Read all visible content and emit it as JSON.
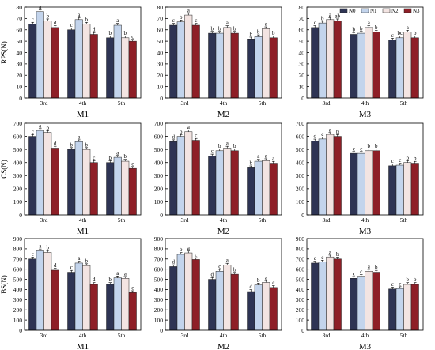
{
  "legend": {
    "items": [
      {
        "name": "N0",
        "color": "#2e3454"
      },
      {
        "name": "N1",
        "color": "#c3d4ec"
      },
      {
        "name": "N2",
        "color": "#f3e4e2"
      },
      {
        "name": "N3",
        "color": "#8e1f27"
      }
    ],
    "placement": "top-right"
  },
  "chart_data": [
    {
      "type": "bar",
      "ylabel": "RPS(N)",
      "xlabel": "M1",
      "ylim": [
        0,
        80
      ],
      "yticks": [
        0,
        10,
        20,
        30,
        40,
        50,
        60,
        70,
        80
      ],
      "categories": [
        "3rd",
        "4th",
        "5th"
      ],
      "series": [
        {
          "name": "N0",
          "values": [
            65,
            60,
            53
          ],
          "letters": [
            "c",
            "c",
            "b"
          ]
        },
        {
          "name": "N1",
          "values": [
            76,
            69,
            64
          ],
          "letters": [
            "a",
            "a",
            "a"
          ]
        },
        {
          "name": "N2",
          "values": [
            68,
            65,
            53
          ],
          "letters": [
            "b",
            "b",
            "b"
          ]
        },
        {
          "name": "N3",
          "values": [
            62,
            56,
            50
          ],
          "letters": [
            "d",
            "d",
            "c"
          ]
        }
      ]
    },
    {
      "type": "bar",
      "ylabel": "",
      "xlabel": "M2",
      "ylim": [
        0,
        80
      ],
      "yticks": [
        0,
        10,
        20,
        30,
        40,
        50,
        60,
        70,
        80
      ],
      "categories": [
        "3rd",
        "4th",
        "5th"
      ],
      "series": [
        {
          "name": "N0",
          "values": [
            64,
            57,
            52
          ],
          "letters": [
            "c",
            "b",
            "b"
          ]
        },
        {
          "name": "N1",
          "values": [
            67,
            57,
            54
          ],
          "letters": [
            "b",
            "b",
            "b"
          ]
        },
        {
          "name": "N2",
          "values": [
            73,
            62,
            61
          ],
          "letters": [
            "a",
            "a",
            "a"
          ]
        },
        {
          "name": "N3",
          "values": [
            64,
            57,
            53
          ],
          "letters": [
            "c",
            "b",
            "b"
          ]
        }
      ]
    },
    {
      "type": "bar",
      "ylabel": "",
      "xlabel": "M3",
      "ylim": [
        0,
        80
      ],
      "yticks": [
        0,
        10,
        20,
        30,
        40,
        50,
        60,
        70,
        80
      ],
      "categories": [
        "3rd",
        "4th",
        "5th"
      ],
      "series": [
        {
          "name": "N0",
          "values": [
            62,
            56,
            51
          ],
          "letters": [
            "c",
            "b",
            "c"
          ]
        },
        {
          "name": "N1",
          "values": [
            66,
            57,
            53
          ],
          "letters": [
            "b",
            "b",
            "bc"
          ]
        },
        {
          "name": "N2",
          "values": [
            69,
            62,
            58
          ],
          "letters": [
            "a",
            "a",
            "a"
          ]
        },
        {
          "name": "N3",
          "values": [
            68,
            58,
            53
          ],
          "letters": [
            "ab",
            "b",
            "b"
          ]
        }
      ]
    },
    {
      "type": "bar",
      "ylabel": "CS(N)",
      "xlabel": "M1",
      "ylim": [
        0,
        700
      ],
      "yticks": [
        0,
        100,
        200,
        300,
        400,
        500,
        600,
        700
      ],
      "categories": [
        "3rd",
        "4th",
        "5th"
      ],
      "series": [
        {
          "name": "N0",
          "values": [
            600,
            500,
            400
          ],
          "letters": [
            "c",
            "b",
            "b"
          ]
        },
        {
          "name": "N1",
          "values": [
            645,
            560,
            440
          ],
          "letters": [
            "a",
            "a",
            "a"
          ]
        },
        {
          "name": "N2",
          "values": [
            630,
            500,
            410
          ],
          "letters": [
            "b",
            "b",
            "b"
          ]
        },
        {
          "name": "N3",
          "values": [
            510,
            400,
            355
          ],
          "letters": [
            "d",
            "c",
            "c"
          ]
        }
      ]
    },
    {
      "type": "bar",
      "ylabel": "",
      "xlabel": "M2",
      "ylim": [
        0,
        700
      ],
      "yticks": [
        0,
        100,
        200,
        300,
        400,
        500,
        600,
        700
      ],
      "categories": [
        "3rd",
        "4th",
        "5th"
      ],
      "series": [
        {
          "name": "N0",
          "values": [
            560,
            450,
            360
          ],
          "letters": [
            "d",
            "c",
            "b"
          ]
        },
        {
          "name": "N1",
          "values": [
            600,
            490,
            410
          ],
          "letters": [
            "b",
            "b",
            "a"
          ]
        },
        {
          "name": "N2",
          "values": [
            635,
            510,
            415
          ],
          "letters": [
            "a",
            "a",
            "a"
          ]
        },
        {
          "name": "N3",
          "values": [
            570,
            490,
            395
          ],
          "letters": [
            "c",
            "b",
            "a"
          ]
        }
      ]
    },
    {
      "type": "bar",
      "ylabel": "",
      "xlabel": "M3",
      "ylim": [
        0,
        700
      ],
      "yticks": [
        0,
        100,
        200,
        300,
        400,
        500,
        600,
        700
      ],
      "categories": [
        "3rd",
        "4th",
        "5th"
      ],
      "series": [
        {
          "name": "N0",
          "values": [
            565,
            470,
            375
          ],
          "letters": [
            "d",
            "c",
            "c"
          ]
        },
        {
          "name": "N1",
          "values": [
            580,
            470,
            380
          ],
          "letters": [
            "c",
            "c",
            "c"
          ]
        },
        {
          "name": "N2",
          "values": [
            615,
            490,
            400
          ],
          "letters": [
            "a",
            "b",
            "b"
          ]
        },
        {
          "name": "N3",
          "values": [
            600,
            490,
            395
          ],
          "letters": [
            "b",
            "b",
            "b"
          ]
        }
      ]
    },
    {
      "type": "bar",
      "ylabel": "BS(N)",
      "xlabel": "M1",
      "ylim": [
        0,
        900
      ],
      "yticks": [
        0,
        100,
        200,
        300,
        400,
        500,
        600,
        700,
        800,
        900
      ],
      "categories": [
        "3rd",
        "4th",
        "5th"
      ],
      "series": [
        {
          "name": "N0",
          "values": [
            700,
            570,
            450
          ],
          "letters": [
            "c",
            "c",
            "b"
          ]
        },
        {
          "name": "N1",
          "values": [
            780,
            660,
            515
          ],
          "letters": [
            "a",
            "a",
            "a"
          ]
        },
        {
          "name": "N2",
          "values": [
            765,
            635,
            510
          ],
          "letters": [
            "b",
            "b",
            "a"
          ]
        },
        {
          "name": "N3",
          "values": [
            590,
            450,
            370
          ],
          "letters": [
            "d",
            "d",
            "c"
          ]
        }
      ]
    },
    {
      "type": "bar",
      "ylabel": "",
      "xlabel": "M2",
      "ylim": [
        0,
        900
      ],
      "yticks": [
        0,
        100,
        200,
        300,
        400,
        500,
        600,
        700,
        800,
        900
      ],
      "categories": [
        "3rd",
        "4th",
        "5th"
      ],
      "series": [
        {
          "name": "N0",
          "values": [
            625,
            500,
            380
          ],
          "letters": [
            "d",
            "d",
            "d"
          ]
        },
        {
          "name": "N1",
          "values": [
            745,
            580,
            445
          ],
          "letters": [
            "b",
            "c",
            "b"
          ]
        },
        {
          "name": "N2",
          "values": [
            760,
            640,
            470
          ],
          "letters": [
            "a",
            "a",
            "a"
          ]
        },
        {
          "name": "N3",
          "values": [
            695,
            550,
            420
          ],
          "letters": [
            "c",
            "b",
            "c"
          ]
        }
      ]
    },
    {
      "type": "bar",
      "ylabel": "",
      "xlabel": "M3",
      "ylim": [
        0,
        900
      ],
      "yticks": [
        0,
        100,
        200,
        300,
        400,
        500,
        600,
        700,
        800,
        900
      ],
      "categories": [
        "3rd",
        "4th",
        "5th"
      ],
      "series": [
        {
          "name": "N0",
          "values": [
            660,
            510,
            405
          ],
          "letters": [
            "c",
            "c",
            "c"
          ]
        },
        {
          "name": "N1",
          "values": [
            670,
            530,
            410
          ],
          "letters": [
            "c",
            "c",
            "c"
          ]
        },
        {
          "name": "N2",
          "values": [
            720,
            580,
            450
          ],
          "letters": [
            "a",
            "a",
            "b"
          ]
        },
        {
          "name": "N3",
          "values": [
            700,
            570,
            450
          ],
          "letters": [
            "b",
            "b",
            "b"
          ]
        }
      ]
    }
  ]
}
